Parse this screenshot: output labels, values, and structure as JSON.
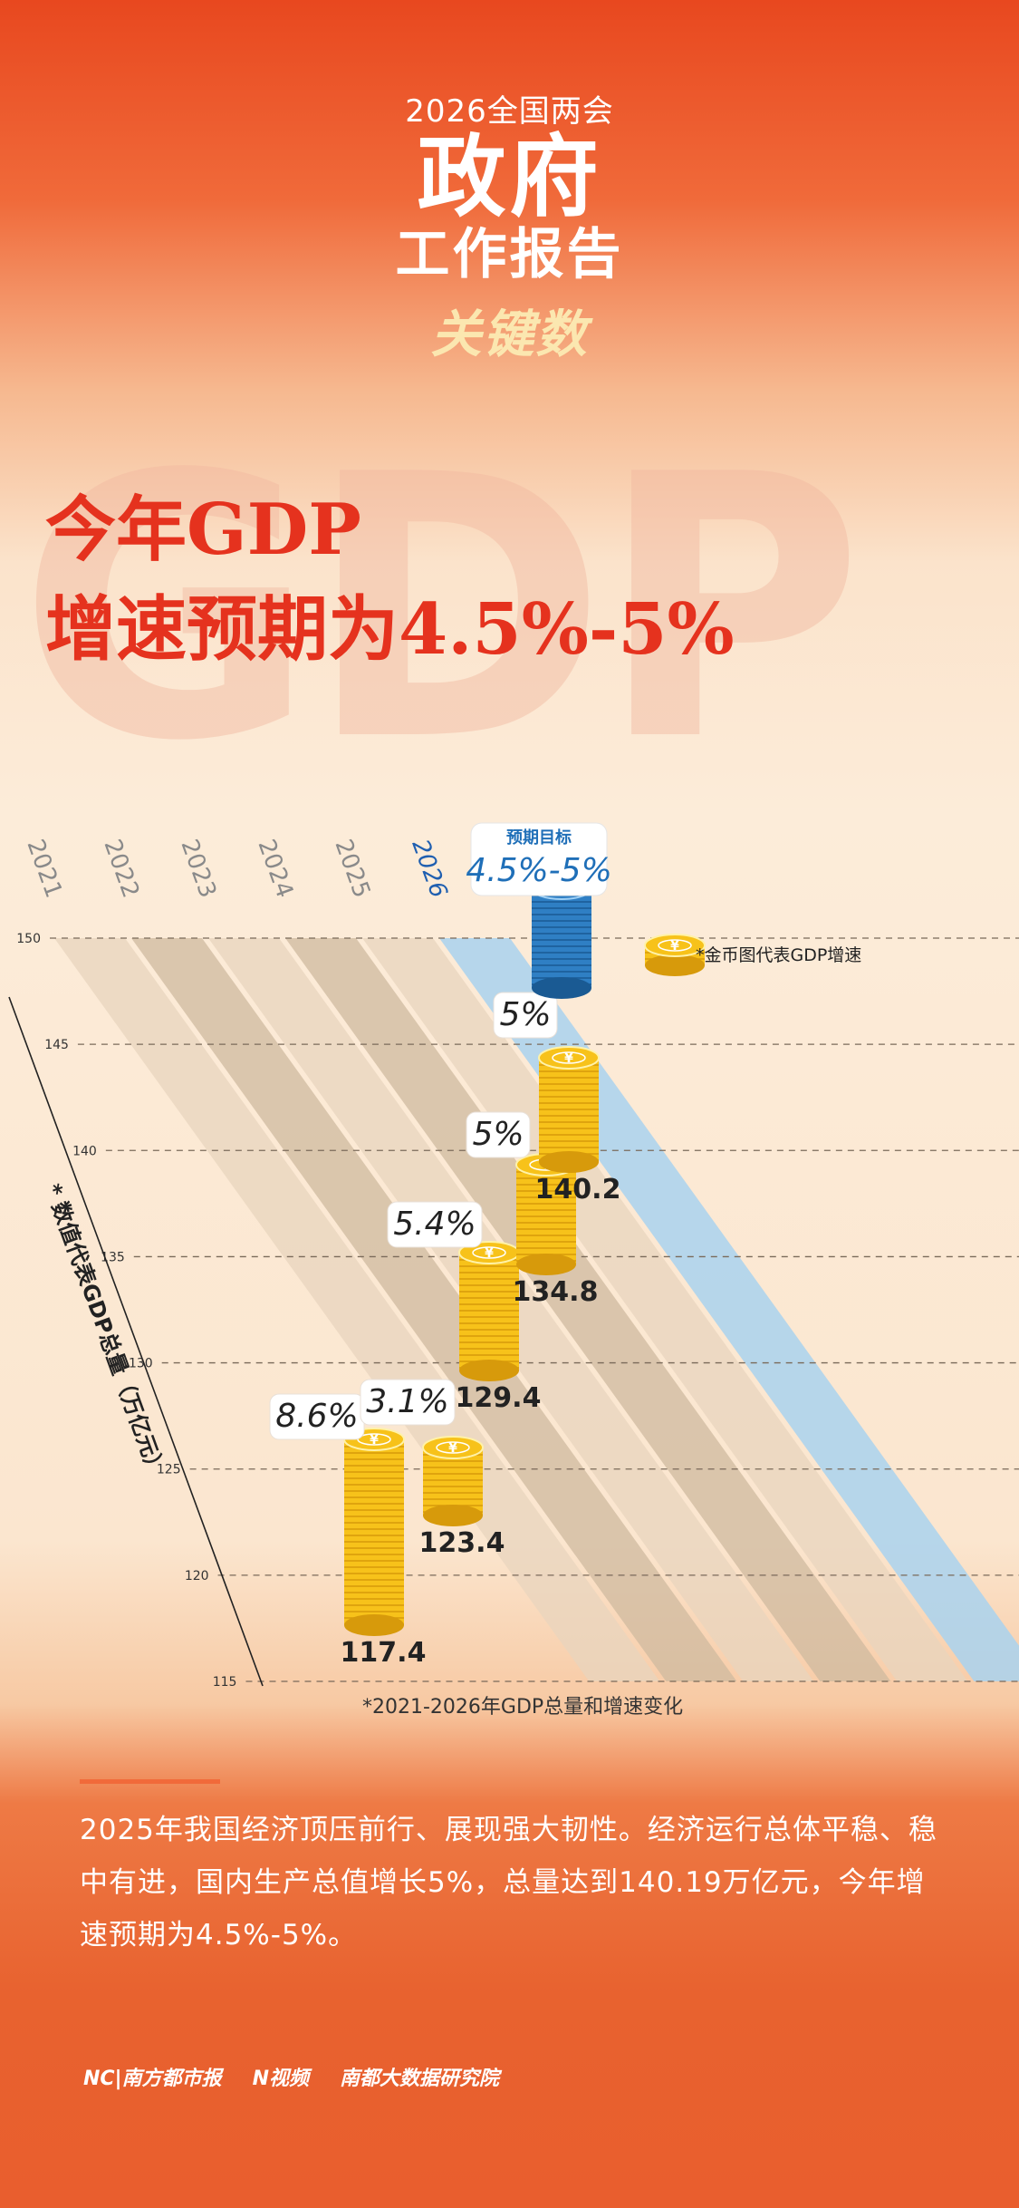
{
  "header": {
    "event": "2026全国两会",
    "title_line1": "政府",
    "title_line2": "工作报告",
    "subtitle": "关键数"
  },
  "background_text": "GDP",
  "headline": {
    "line1": "今年GDP",
    "line2": "增速预期为4.5%-5%"
  },
  "chart_data": {
    "type": "bar",
    "title": "",
    "caption": "*2021-2026年GDP总量和增速变化",
    "y_axis_label": "* 数值代表GDP总量（万亿元）",
    "legend": "*金币图代表GDP增速",
    "ylim": [
      115,
      150
    ],
    "y_ticks": [
      115,
      120,
      125,
      130,
      135,
      140,
      145,
      150
    ],
    "categories": [
      "2021",
      "2022",
      "2023",
      "2024",
      "2025",
      "2026"
    ],
    "gdp_total": [
      117.4,
      123.4,
      129.4,
      134.8,
      140.2,
      null
    ],
    "growth_labels": [
      "8.6%",
      "3.1%",
      "5.4%",
      "5%",
      "5%",
      "4.5%-5%"
    ],
    "target_title": "预期目标",
    "colors": {
      "coin": "#f7c21a",
      "coin_dark": "#d79a0b",
      "target_coin": "#2f7fc4",
      "target_text": "#1f6fb8"
    }
  },
  "paragraph": "2025年我国经济顶压前行、展现强大韧性。经济运行总体平稳、稳中有进，国内生产总值增长5%，总量达到140.19万亿元，今年增速预期为4.5%-5%。",
  "footer": {
    "logos": [
      "NC|南方都市报",
      "N视频",
      "南都大数据研究院"
    ]
  }
}
